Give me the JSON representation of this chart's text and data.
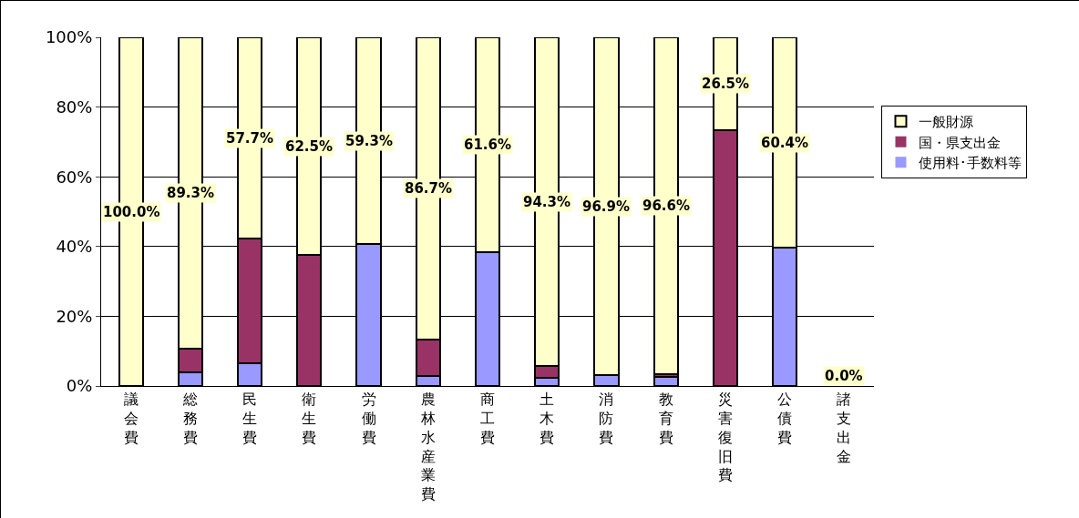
{
  "chart_data": {
    "type": "bar",
    "stacked": true,
    "categories": [
      "議会費",
      "総務費",
      "民生費",
      "衛生費",
      "労働費",
      "農林水産業費",
      "商工費",
      "土木費",
      "消防費",
      "教育費",
      "災害復旧費",
      "公債費",
      "諸支出金"
    ],
    "series": [
      {
        "name": "使用料･手数料等",
        "color": "#9999ff",
        "values": [
          0,
          3.9,
          6.5,
          0,
          40.7,
          3.0,
          38.4,
          2.3,
          3.1,
          2.6,
          0,
          39.6,
          0
        ]
      },
      {
        "name": "国・県支出金",
        "color": "#993366",
        "values": [
          0,
          6.8,
          35.8,
          37.5,
          0,
          10.3,
          0,
          3.4,
          0,
          0.8,
          73.5,
          0,
          0
        ]
      },
      {
        "name": "一般財源",
        "color": "#ffffcc",
        "values": [
          100,
          89.3,
          57.7,
          62.5,
          59.3,
          86.7,
          61.6,
          94.3,
          96.9,
          96.6,
          26.5,
          60.4,
          0
        ],
        "value_labels": [
          "100.0%",
          "89.3%",
          "57.7%",
          "62.5%",
          "59.3%",
          "86.7%",
          "61.6%",
          "94.3%",
          "96.9%",
          "96.6%",
          "26.5%",
          "60.4%",
          "0.0%"
        ]
      }
    ],
    "ylim": [
      0,
      100
    ],
    "yticks": [
      {
        "value": 0,
        "label": "0%"
      },
      {
        "value": 20,
        "label": "20%"
      },
      {
        "value": 40,
        "label": "40%"
      },
      {
        "value": 60,
        "label": "60%"
      },
      {
        "value": 80,
        "label": "80%"
      },
      {
        "value": 100,
        "label": "100%"
      }
    ],
    "grid": "y",
    "legend": "right"
  }
}
